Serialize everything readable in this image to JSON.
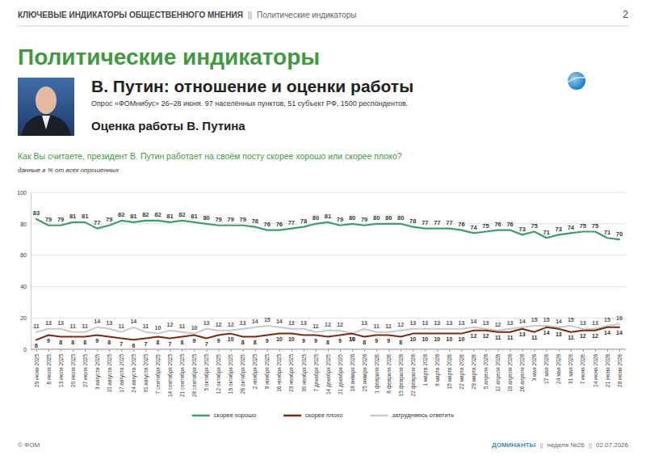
{
  "header": {
    "left": "КЛЮЧЕВЫЕ ИНДИКАТОРЫ ОБЩЕСТВЕННОГО МНЕНИЯ",
    "separator": "||",
    "right": "Политические индикаторы",
    "page_number": 2
  },
  "section_title": "Политические индикаторы",
  "block_title": "В. Путин: отношение и оценки работы",
  "survey_note": "Опрос «ФОМнибус» 26–28 июня. 97 населённых пунктов, 51 субъект РФ, 1500 респондентов.",
  "block_subtitle": "Оценка работы В. Путина",
  "chart_data": {
    "type": "line",
    "title": "Как Вы считаете, президент В. Путин работает на своём посту скорее хорошо или скорее плохо?",
    "subtitle": "данные в % от всех опрошенных",
    "categories": [
      "29 июня 2025",
      "6 июля 2025",
      "13 июля 2025",
      "20 июля 2025",
      "27 июля 2025",
      "3 августа 2025",
      "10 августа 2025",
      "17 августа 2025",
      "24 августа 2025",
      "31 августа 2025",
      "7 сентября 2025",
      "14 сентября 2025",
      "21 сентября 2025",
      "28 сентября 2025",
      "5 октября 2025",
      "12 октября 2025",
      "19 октября 2025",
      "26 октября 2025",
      "2 ноября 2025",
      "9 ноября 2025",
      "16 ноября 2025",
      "23 ноября 2025",
      "30 ноября 2025",
      "7 декабря 2025",
      "14 декабря 2025",
      "21 декабря 2025",
      "18 января 2026",
      "25 января 2026",
      "1 февраля 2026",
      "8 февраля 2026",
      "15 февраля 2026",
      "22 февраля 2026",
      "1 марта 2026",
      "8 марта 2026",
      "15 марта 2026",
      "22 марта 2026",
      "29 марта 2026",
      "5 апреля 2026",
      "12 апреля 2026",
      "19 апреля 2026",
      "26 апреля 2026",
      "3 мая 2026",
      "17 мая 2026",
      "24 мая 2026",
      "31 мая 2026",
      "7 июня 2026",
      "14 июня 2026",
      "21 июня 2026",
      "28 июня 2026"
    ],
    "series": [
      {
        "name": "скорее хорошо",
        "color": "#3c9f6c",
        "values": [
          83,
          79,
          79,
          81,
          81,
          77,
          79,
          82,
          81,
          82,
          82,
          81,
          82,
          81,
          80,
          79,
          79,
          79,
          78,
          76,
          76,
          77,
          78,
          80,
          81,
          79,
          80,
          79,
          80,
          80,
          80,
          78,
          77,
          77,
          77,
          76,
          74,
          75,
          76,
          76,
          73,
          75,
          71,
          73,
          74,
          75,
          75,
          71,
          70
        ]
      },
      {
        "name": "скорее плохо",
        "color": "#7a2a12",
        "values": [
          6,
          9,
          8,
          8,
          8,
          9,
          8,
          7,
          6,
          7,
          8,
          7,
          8,
          9,
          7,
          9,
          10,
          8,
          8,
          9,
          10,
          10,
          9,
          9,
          8,
          9,
          10,
          8,
          9,
          9,
          8,
          10,
          10,
          10,
          10,
          10,
          12,
          12,
          11,
          11,
          13,
          11,
          14,
          13,
          11,
          12,
          12,
          14,
          14
        ]
      },
      {
        "name": "затрудняюсь ответить",
        "color": "#c9c9c9",
        "values": [
          11,
          13,
          13,
          11,
          11,
          14,
          13,
          11,
          14,
          11,
          10,
          12,
          11,
          10,
          13,
          12,
          12,
          13,
          14,
          15,
          14,
          13,
          13,
          11,
          12,
          12,
          10,
          13,
          11,
          11,
          12,
          13,
          13,
          13,
          13,
          13,
          14,
          13,
          12,
          13,
          14,
          15,
          15,
          14,
          15,
          13,
          13,
          15,
          16
        ]
      }
    ],
    "ylim": [
      0,
      100
    ],
    "yticks": [
      0,
      20,
      40,
      60,
      80,
      100
    ],
    "grid": true,
    "data_labels": true,
    "legend": "bottom"
  },
  "footer": {
    "left": "© ФОМ",
    "right": [
      "ДОМИНАНТЫ",
      "неделя №26",
      "02.07.2026"
    ],
    "separator": "||"
  }
}
